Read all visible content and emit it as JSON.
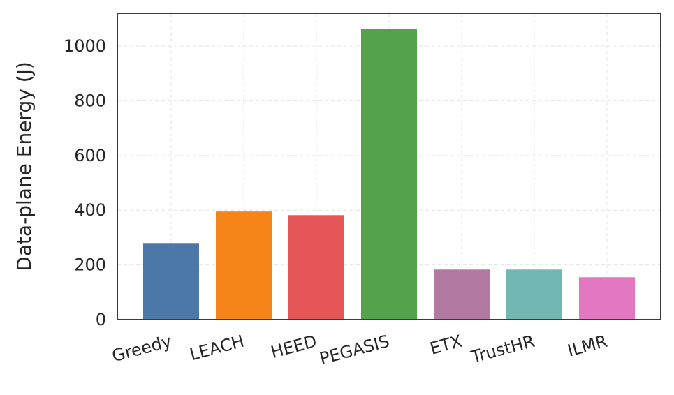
{
  "chart_data": {
    "type": "bar",
    "title": "",
    "xlabel": "",
    "ylabel": "Data-plane Energy (J)",
    "categories": [
      "Greedy",
      "LEACH",
      "HEED",
      "PEGASIS",
      "ETX",
      "TrustHR",
      "ILMR"
    ],
    "values": [
      280,
      395,
      382,
      1062,
      183,
      183,
      155
    ],
    "colors": [
      "#4c78a8",
      "#f58518",
      "#e45756",
      "#54a24b",
      "#b279a2",
      "#72b7b2",
      "#e377c2"
    ],
    "ylim": [
      0,
      1120
    ],
    "yticks": [
      0,
      200,
      400,
      600,
      800,
      1000
    ],
    "grid": true,
    "legend": "none"
  }
}
